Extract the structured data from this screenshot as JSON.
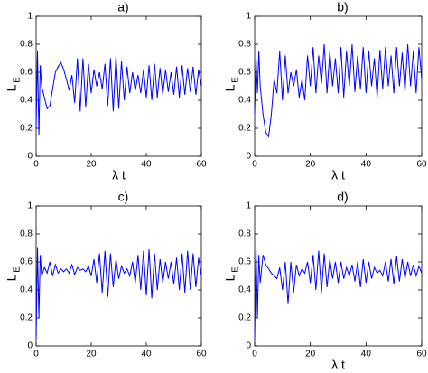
{
  "chart_data": [
    {
      "type": "line",
      "title": "a)",
      "xlabel": "λ t",
      "ylabel": "L",
      "ylabel_subscript": "E",
      "color": "#0000ff",
      "x": [
        0,
        0.5,
        1,
        1.5,
        2,
        3,
        4,
        5,
        6,
        7,
        8,
        9,
        10,
        11,
        12,
        13,
        14,
        15,
        16,
        17,
        18,
        19,
        20,
        21,
        22,
        23,
        24,
        25,
        26,
        27,
        28,
        29,
        30,
        31,
        32,
        33,
        34,
        35,
        36,
        37,
        38,
        39,
        40,
        41,
        42,
        43,
        44,
        45,
        46,
        47,
        48,
        49,
        50,
        51,
        52,
        53,
        54,
        55,
        56,
        57,
        58,
        59,
        60
      ],
      "values": [
        0.2,
        0.75,
        0.15,
        0.65,
        0.5,
        0.42,
        0.34,
        0.36,
        0.48,
        0.6,
        0.64,
        0.67,
        0.62,
        0.55,
        0.47,
        0.58,
        0.38,
        0.7,
        0.32,
        0.7,
        0.35,
        0.66,
        0.45,
        0.62,
        0.5,
        0.6,
        0.48,
        0.66,
        0.36,
        0.7,
        0.32,
        0.72,
        0.34,
        0.68,
        0.4,
        0.64,
        0.45,
        0.6,
        0.47,
        0.58,
        0.45,
        0.62,
        0.42,
        0.65,
        0.4,
        0.66,
        0.42,
        0.63,
        0.44,
        0.62,
        0.46,
        0.6,
        0.44,
        0.64,
        0.42,
        0.65,
        0.44,
        0.63,
        0.46,
        0.64,
        0.44,
        0.62,
        0.5
      ],
      "xlim": [
        0,
        60
      ],
      "ylim": [
        0,
        1
      ],
      "xticks": [
        0,
        20,
        40,
        60
      ],
      "yticks": [
        0,
        0.2,
        0.4,
        0.6,
        0.8,
        1
      ]
    },
    {
      "type": "line",
      "title": "b)",
      "xlabel": "λ t",
      "ylabel": "L",
      "ylabel_subscript": "E",
      "color": "#0000ff",
      "x": [
        0,
        0.5,
        1,
        1.5,
        2,
        3,
        4,
        5,
        6,
        7,
        8,
        9,
        10,
        11,
        12,
        13,
        14,
        15,
        16,
        17,
        18,
        19,
        20,
        21,
        22,
        23,
        24,
        25,
        26,
        27,
        28,
        29,
        30,
        31,
        32,
        33,
        34,
        35,
        36,
        37,
        38,
        39,
        40,
        41,
        42,
        43,
        44,
        45,
        46,
        47,
        48,
        49,
        50,
        51,
        52,
        53,
        54,
        55,
        56,
        57,
        58,
        59,
        60
      ],
      "values": [
        0.3,
        0.7,
        0.45,
        0.75,
        0.5,
        0.3,
        0.17,
        0.14,
        0.3,
        0.55,
        0.45,
        0.75,
        0.4,
        0.72,
        0.45,
        0.6,
        0.5,
        0.62,
        0.42,
        0.55,
        0.4,
        0.72,
        0.5,
        0.78,
        0.45,
        0.72,
        0.52,
        0.8,
        0.45,
        0.75,
        0.5,
        0.7,
        0.45,
        0.78,
        0.42,
        0.75,
        0.5,
        0.8,
        0.46,
        0.72,
        0.48,
        0.78,
        0.45,
        0.75,
        0.5,
        0.7,
        0.42,
        0.76,
        0.48,
        0.78,
        0.5,
        0.72,
        0.45,
        0.78,
        0.5,
        0.74,
        0.46,
        0.8,
        0.5,
        0.75,
        0.45,
        0.78,
        0.55
      ],
      "xlim": [
        0,
        60
      ],
      "ylim": [
        0,
        1
      ],
      "xticks": [
        0,
        20,
        40,
        60
      ],
      "yticks": [
        0,
        0.2,
        0.4,
        0.6,
        0.8,
        1
      ]
    },
    {
      "type": "line",
      "title": "c)",
      "ylabel": "L",
      "ylabel_subscript": "E",
      "color": "#0000ff",
      "x": [
        0,
        0.5,
        1,
        1.5,
        2,
        3,
        4,
        5,
        6,
        7,
        8,
        9,
        10,
        11,
        12,
        13,
        14,
        15,
        16,
        17,
        18,
        19,
        20,
        21,
        22,
        23,
        24,
        25,
        26,
        27,
        28,
        29,
        30,
        31,
        32,
        33,
        34,
        35,
        36,
        37,
        38,
        39,
        40,
        41,
        42,
        43,
        44,
        45,
        46,
        47,
        48,
        49,
        50,
        51,
        52,
        53,
        54,
        55,
        56,
        57,
        58,
        59,
        60
      ],
      "values": [
        0.05,
        0.7,
        0.2,
        0.65,
        0.5,
        0.56,
        0.52,
        0.6,
        0.5,
        0.58,
        0.52,
        0.55,
        0.53,
        0.55,
        0.52,
        0.58,
        0.51,
        0.56,
        0.54,
        0.55,
        0.53,
        0.57,
        0.5,
        0.62,
        0.45,
        0.66,
        0.38,
        0.68,
        0.35,
        0.66,
        0.42,
        0.62,
        0.48,
        0.57,
        0.52,
        0.55,
        0.5,
        0.6,
        0.45,
        0.65,
        0.4,
        0.68,
        0.36,
        0.69,
        0.34,
        0.66,
        0.4,
        0.62,
        0.45,
        0.6,
        0.48,
        0.6,
        0.44,
        0.63,
        0.4,
        0.66,
        0.38,
        0.68,
        0.4,
        0.66,
        0.42,
        0.63,
        0.5
      ],
      "xlim": [
        0,
        60
      ],
      "ylim": [
        0,
        1
      ],
      "xticks": [
        0,
        20,
        40,
        60
      ],
      "yticks": [
        0,
        0.2,
        0.4,
        0.6,
        0.8,
        1
      ]
    },
    {
      "type": "line",
      "title": "d)",
      "xlabel": "λ t",
      "ylabel": "L",
      "ylabel_subscript": "E",
      "color": "#0000ff",
      "x": [
        0,
        0.5,
        1,
        1.5,
        2,
        3,
        4,
        5,
        6,
        7,
        8,
        9,
        10,
        11,
        12,
        13,
        14,
        15,
        16,
        17,
        18,
        19,
        20,
        21,
        22,
        23,
        24,
        25,
        26,
        27,
        28,
        29,
        30,
        31,
        32,
        33,
        34,
        35,
        36,
        37,
        38,
        39,
        40,
        41,
        42,
        43,
        44,
        45,
        46,
        47,
        48,
        49,
        50,
        51,
        52,
        53,
        54,
        55,
        56,
        57,
        58,
        59,
        60
      ],
      "values": [
        0.05,
        0.7,
        0.2,
        0.65,
        0.45,
        0.65,
        0.58,
        0.55,
        0.52,
        0.5,
        0.48,
        0.56,
        0.4,
        0.6,
        0.3,
        0.6,
        0.38,
        0.58,
        0.5,
        0.55,
        0.52,
        0.6,
        0.45,
        0.65,
        0.4,
        0.68,
        0.38,
        0.66,
        0.42,
        0.62,
        0.48,
        0.6,
        0.45,
        0.6,
        0.48,
        0.56,
        0.5,
        0.58,
        0.46,
        0.6,
        0.42,
        0.62,
        0.45,
        0.6,
        0.48,
        0.56,
        0.52,
        0.54,
        0.5,
        0.6,
        0.46,
        0.62,
        0.44,
        0.64,
        0.46,
        0.62,
        0.48,
        0.6,
        0.5,
        0.58,
        0.5,
        0.57,
        0.52
      ],
      "xlim": [
        0,
        60
      ],
      "ylim": [
        0,
        1
      ],
      "xticks": [
        0,
        20,
        40,
        60
      ],
      "yticks": [
        0,
        0.2,
        0.4,
        0.6,
        0.8,
        1
      ]
    }
  ]
}
